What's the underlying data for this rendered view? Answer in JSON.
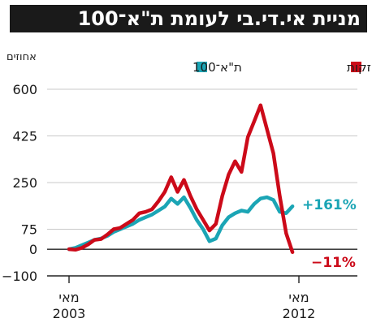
{
  "title": "מניית אי.די.בי לעומת ת\"א־100",
  "chart_data": {
    "type": "line",
    "title": "מניית אי.די.בי לעומת ת\"א־100",
    "unit_label": "אחוזים",
    "ylim": [
      -100,
      600
    ],
    "yticks": [
      -100,
      0,
      75,
      250,
      425,
      600
    ],
    "x_range": [
      "2003-05",
      "2012-05"
    ],
    "x_ticks": [
      {
        "month": "מאי",
        "year": "2003",
        "date": "2003-05"
      },
      {
        "month": "מאי",
        "year": "2012",
        "date": "2012-05"
      }
    ],
    "series": [
      {
        "name": "אי.די.בי אחזקות",
        "color": "#cc0a19",
        "end_label": "−11%",
        "points": [
          [
            "2003-05",
            0
          ],
          [
            "2003-08",
            -2
          ],
          [
            "2003-11",
            5
          ],
          [
            "2004-02",
            18
          ],
          [
            "2004-05",
            35
          ],
          [
            "2004-08",
            38
          ],
          [
            "2004-11",
            55
          ],
          [
            "2005-02",
            75
          ],
          [
            "2005-05",
            80
          ],
          [
            "2005-08",
            95
          ],
          [
            "2005-11",
            110
          ],
          [
            "2006-02",
            135
          ],
          [
            "2006-05",
            140
          ],
          [
            "2006-08",
            150
          ],
          [
            "2006-11",
            180
          ],
          [
            "2007-02",
            215
          ],
          [
            "2007-05",
            270
          ],
          [
            "2007-08",
            215
          ],
          [
            "2007-11",
            260
          ],
          [
            "2008-02",
            200
          ],
          [
            "2008-05",
            150
          ],
          [
            "2008-08",
            110
          ],
          [
            "2008-11",
            70
          ],
          [
            "2009-02",
            95
          ],
          [
            "2009-05",
            200
          ],
          [
            "2009-08",
            280
          ],
          [
            "2009-11",
            330
          ],
          [
            "2010-02",
            290
          ],
          [
            "2010-05",
            420
          ],
          [
            "2010-08",
            480
          ],
          [
            "2010-11",
            540
          ],
          [
            "2011-02",
            450
          ],
          [
            "2011-05",
            360
          ],
          [
            "2011-08",
            200
          ],
          [
            "2011-11",
            60
          ],
          [
            "2012-02",
            -11
          ]
        ]
      },
      {
        "name": "ת\"א־100",
        "color": "#1ba5b5",
        "end_label": "+161%",
        "points": [
          [
            "2003-05",
            0
          ],
          [
            "2003-08",
            5
          ],
          [
            "2003-11",
            15
          ],
          [
            "2004-02",
            25
          ],
          [
            "2004-05",
            35
          ],
          [
            "2004-08",
            40
          ],
          [
            "2004-11",
            50
          ],
          [
            "2005-02",
            65
          ],
          [
            "2005-05",
            75
          ],
          [
            "2005-08",
            85
          ],
          [
            "2005-11",
            95
          ],
          [
            "2006-02",
            110
          ],
          [
            "2006-05",
            120
          ],
          [
            "2006-08",
            130
          ],
          [
            "2006-11",
            145
          ],
          [
            "2007-02",
            160
          ],
          [
            "2007-05",
            190
          ],
          [
            "2007-08",
            170
          ],
          [
            "2007-11",
            195
          ],
          [
            "2008-02",
            155
          ],
          [
            "2008-05",
            110
          ],
          [
            "2008-08",
            75
          ],
          [
            "2008-11",
            30
          ],
          [
            "2009-02",
            40
          ],
          [
            "2009-05",
            90
          ],
          [
            "2009-08",
            120
          ],
          [
            "2009-11",
            135
          ],
          [
            "2010-02",
            145
          ],
          [
            "2010-05",
            140
          ],
          [
            "2010-08",
            170
          ],
          [
            "2010-11",
            190
          ],
          [
            "2011-02",
            195
          ],
          [
            "2011-05",
            185
          ],
          [
            "2011-08",
            140
          ],
          [
            "2011-11",
            135
          ],
          [
            "2012-02",
            161
          ]
        ]
      }
    ],
    "grid": true,
    "legend_position": "top"
  }
}
